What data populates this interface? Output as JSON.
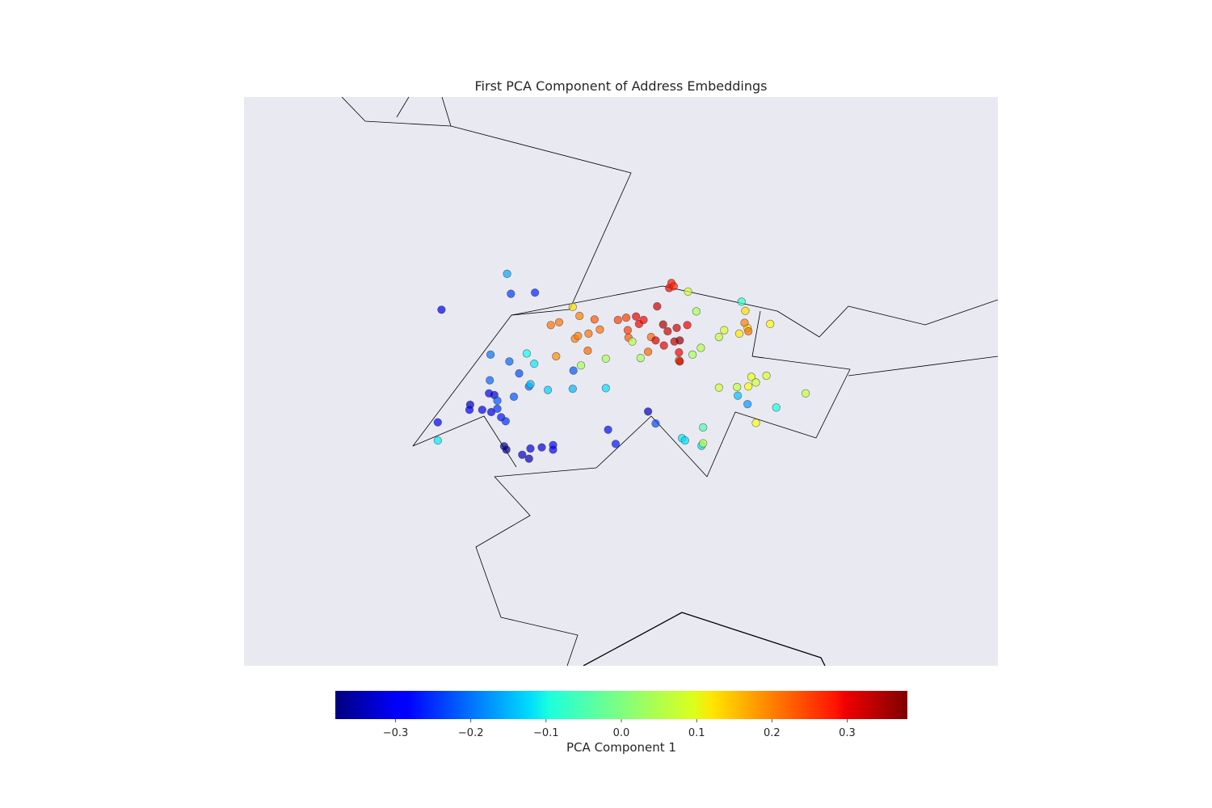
{
  "chart_data": {
    "type": "scatter",
    "title": "First PCA Component of Address Embeddings",
    "xlabel": "",
    "ylabel": "",
    "grid": false,
    "colormap": "jet",
    "colorbar": {
      "label": "PCA Component 1",
      "vmin": -0.38,
      "vmax": 0.38,
      "ticks": [
        -0.3,
        -0.2,
        -0.1,
        0.0,
        0.1,
        0.2,
        0.3
      ],
      "tick_labels": [
        "−0.3",
        "−0.2",
        "−0.1",
        "0.0",
        "0.1",
        "0.2",
        "0.3"
      ],
      "orientation": "horizontal"
    },
    "colors": {
      "plot_background": "#e9eaf1",
      "boundary_line": "#000000",
      "marker_edge": "#333333"
    },
    "points": [
      {
        "x": 0.262,
        "y": 0.626,
        "v": -0.3
      },
      {
        "x": 0.257,
        "y": 0.428,
        "v": -0.29
      },
      {
        "x": 0.257,
        "y": 0.396,
        "v": -0.11
      },
      {
        "x": 0.3,
        "y": 0.459,
        "v": -0.33
      },
      {
        "x": 0.299,
        "y": 0.45,
        "v": -0.29
      },
      {
        "x": 0.316,
        "y": 0.45,
        "v": -0.3
      },
      {
        "x": 0.325,
        "y": 0.479,
        "v": -0.29
      },
      {
        "x": 0.327,
        "y": 0.547,
        "v": -0.2
      },
      {
        "x": 0.326,
        "y": 0.502,
        "v": -0.21
      },
      {
        "x": 0.328,
        "y": 0.446,
        "v": -0.3
      },
      {
        "x": 0.332,
        "y": 0.476,
        "v": -0.31
      },
      {
        "x": 0.336,
        "y": 0.466,
        "v": -0.22
      },
      {
        "x": 0.336,
        "y": 0.452,
        "v": -0.25
      },
      {
        "x": 0.341,
        "y": 0.437,
        "v": -0.27
      },
      {
        "x": 0.345,
        "y": 0.386,
        "v": -0.36
      },
      {
        "x": 0.348,
        "y": 0.38,
        "v": -0.37
      },
      {
        "x": 0.347,
        "y": 0.43,
        "v": -0.25
      },
      {
        "x": 0.349,
        "y": 0.689,
        "v": -0.16
      },
      {
        "x": 0.352,
        "y": 0.535,
        "v": -0.21
      },
      {
        "x": 0.354,
        "y": 0.654,
        "v": -0.24
      },
      {
        "x": 0.358,
        "y": 0.473,
        "v": -0.22
      },
      {
        "x": 0.365,
        "y": 0.514,
        "v": -0.23
      },
      {
        "x": 0.369,
        "y": 0.371,
        "v": -0.32
      },
      {
        "x": 0.378,
        "y": 0.364,
        "v": -0.34
      },
      {
        "x": 0.38,
        "y": 0.382,
        "v": -0.31
      },
      {
        "x": 0.375,
        "y": 0.549,
        "v": -0.09
      },
      {
        "x": 0.378,
        "y": 0.491,
        "v": -0.2
      },
      {
        "x": 0.38,
        "y": 0.495,
        "v": -0.14
      },
      {
        "x": 0.385,
        "y": 0.531,
        "v": -0.11
      },
      {
        "x": 0.386,
        "y": 0.656,
        "v": -0.26
      },
      {
        "x": 0.395,
        "y": 0.384,
        "v": -0.31
      },
      {
        "x": 0.41,
        "y": 0.388,
        "v": -0.28
      },
      {
        "x": 0.41,
        "y": 0.38,
        "v": -0.29
      },
      {
        "x": 0.403,
        "y": 0.485,
        "v": -0.13
      },
      {
        "x": 0.407,
        "y": 0.599,
        "v": 0.2
      },
      {
        "x": 0.418,
        "y": 0.604,
        "v": 0.2
      },
      {
        "x": 0.414,
        "y": 0.544,
        "v": 0.18
      },
      {
        "x": 0.436,
        "y": 0.487,
        "v": -0.15
      },
      {
        "x": 0.436,
        "y": 0.631,
        "v": 0.12
      },
      {
        "x": 0.437,
        "y": 0.519,
        "v": -0.22
      },
      {
        "x": 0.439,
        "y": 0.575,
        "v": 0.19
      },
      {
        "x": 0.445,
        "y": 0.615,
        "v": 0.19
      },
      {
        "x": 0.443,
        "y": 0.58,
        "v": 0.19
      },
      {
        "x": 0.447,
        "y": 0.528,
        "v": 0.03
      },
      {
        "x": 0.457,
        "y": 0.584,
        "v": 0.2
      },
      {
        "x": 0.456,
        "y": 0.554,
        "v": 0.21
      },
      {
        "x": 0.465,
        "y": 0.609,
        "v": 0.22
      },
      {
        "x": 0.472,
        "y": 0.591,
        "v": 0.2
      },
      {
        "x": 0.48,
        "y": 0.54,
        "v": 0.03
      },
      {
        "x": 0.48,
        "y": 0.488,
        "v": -0.12
      },
      {
        "x": 0.483,
        "y": 0.415,
        "v": -0.28
      },
      {
        "x": 0.493,
        "y": 0.39,
        "v": -0.27
      },
      {
        "x": 0.496,
        "y": 0.608,
        "v": 0.24
      },
      {
        "x": 0.507,
        "y": 0.612,
        "v": 0.24
      },
      {
        "x": 0.51,
        "y": 0.577,
        "v": 0.22
      },
      {
        "x": 0.509,
        "y": 0.59,
        "v": 0.24
      },
      {
        "x": 0.515,
        "y": 0.57,
        "v": 0.04
      },
      {
        "x": 0.52,
        "y": 0.614,
        "v": 0.3
      },
      {
        "x": 0.524,
        "y": 0.601,
        "v": 0.29
      },
      {
        "x": 0.526,
        "y": 0.541,
        "v": 0.03
      },
      {
        "x": 0.53,
        "y": 0.608,
        "v": 0.29
      },
      {
        "x": 0.536,
        "y": 0.447,
        "v": -0.33
      },
      {
        "x": 0.536,
        "y": 0.552,
        "v": 0.21
      },
      {
        "x": 0.54,
        "y": 0.578,
        "v": 0.21
      },
      {
        "x": 0.546,
        "y": 0.572,
        "v": 0.31
      },
      {
        "x": 0.548,
        "y": 0.632,
        "v": 0.32
      },
      {
        "x": 0.546,
        "y": 0.426,
        "v": -0.23
      },
      {
        "x": 0.556,
        "y": 0.6,
        "v": 0.34
      },
      {
        "x": 0.557,
        "y": 0.563,
        "v": 0.3
      },
      {
        "x": 0.562,
        "y": 0.588,
        "v": 0.32
      },
      {
        "x": 0.564,
        "y": 0.664,
        "v": 0.29
      },
      {
        "x": 0.567,
        "y": 0.673,
        "v": 0.27
      },
      {
        "x": 0.57,
        "y": 0.667,
        "v": 0.26
      },
      {
        "x": 0.571,
        "y": 0.57,
        "v": 0.33
      },
      {
        "x": 0.574,
        "y": 0.594,
        "v": 0.32
      },
      {
        "x": 0.578,
        "y": 0.572,
        "v": 0.36
      },
      {
        "x": 0.577,
        "y": 0.551,
        "v": 0.29
      },
      {
        "x": 0.577,
        "y": 0.537,
        "v": 0.2
      },
      {
        "x": 0.578,
        "y": 0.535,
        "v": 0.32
      },
      {
        "x": 0.581,
        "y": 0.4,
        "v": -0.11
      },
      {
        "x": 0.585,
        "y": 0.396,
        "v": -0.12
      },
      {
        "x": 0.588,
        "y": 0.599,
        "v": 0.3
      },
      {
        "x": 0.589,
        "y": 0.658,
        "v": 0.06
      },
      {
        "x": 0.595,
        "y": 0.547,
        "v": 0.03
      },
      {
        "x": 0.6,
        "y": 0.623,
        "v": 0.03
      },
      {
        "x": 0.606,
        "y": 0.559,
        "v": 0.04
      },
      {
        "x": 0.607,
        "y": 0.387,
        "v": -0.12
      },
      {
        "x": 0.609,
        "y": 0.419,
        "v": -0.04
      },
      {
        "x": 0.609,
        "y": 0.391,
        "v": 0.04
      },
      {
        "x": 0.63,
        "y": 0.578,
        "v": 0.05
      },
      {
        "x": 0.63,
        "y": 0.489,
        "v": 0.06
      },
      {
        "x": 0.637,
        "y": 0.59,
        "v": 0.07
      },
      {
        "x": 0.657,
        "y": 0.584,
        "v": 0.11
      },
      {
        "x": 0.654,
        "y": 0.49,
        "v": 0.05
      },
      {
        "x": 0.655,
        "y": 0.475,
        "v": -0.14
      },
      {
        "x": 0.66,
        "y": 0.64,
        "v": -0.06
      },
      {
        "x": 0.668,
        "y": 0.594,
        "v": 0.12
      },
      {
        "x": 0.664,
        "y": 0.603,
        "v": 0.19
      },
      {
        "x": 0.669,
        "y": 0.588,
        "v": 0.2
      },
      {
        "x": 0.669,
        "y": 0.491,
        "v": 0.09
      },
      {
        "x": 0.665,
        "y": 0.624,
        "v": 0.12
      },
      {
        "x": 0.668,
        "y": 0.46,
        "v": -0.17
      },
      {
        "x": 0.673,
        "y": 0.508,
        "v": 0.08
      },
      {
        "x": 0.679,
        "y": 0.427,
        "v": 0.09
      },
      {
        "x": 0.679,
        "y": 0.498,
        "v": 0.06
      },
      {
        "x": 0.693,
        "y": 0.51,
        "v": 0.07
      },
      {
        "x": 0.698,
        "y": 0.601,
        "v": 0.1
      },
      {
        "x": 0.706,
        "y": 0.454,
        "v": -0.08
      },
      {
        "x": 0.745,
        "y": 0.479,
        "v": 0.05
      }
    ]
  }
}
